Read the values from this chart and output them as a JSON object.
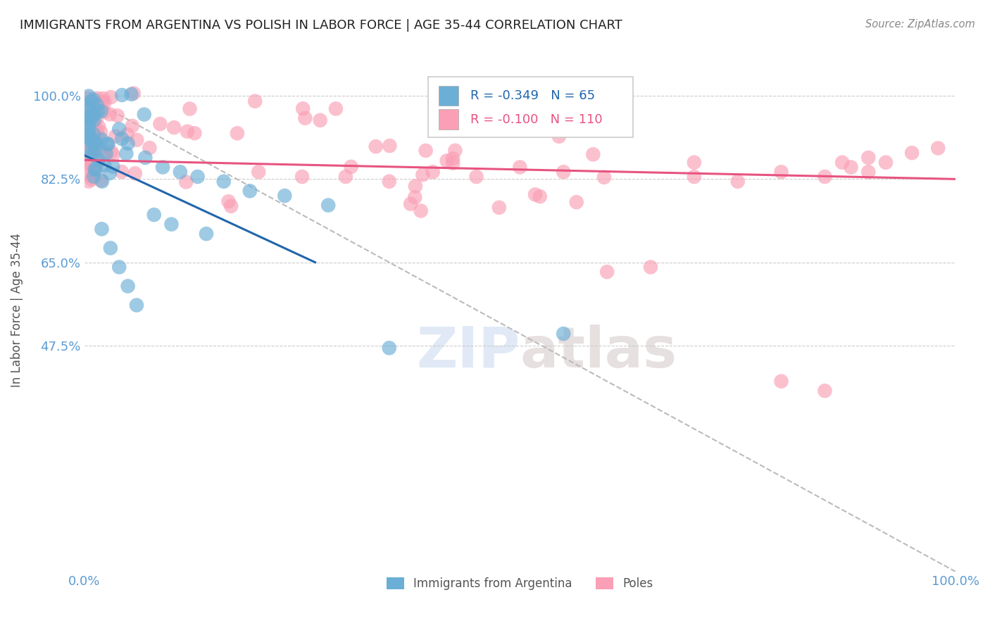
{
  "title": "IMMIGRANTS FROM ARGENTINA VS POLISH IN LABOR FORCE | AGE 35-44 CORRELATION CHART",
  "source": "Source: ZipAtlas.com",
  "ylabel": "In Labor Force | Age 35-44",
  "xlim": [
    0.0,
    1.0
  ],
  "ylim": [
    0.0,
    1.1
  ],
  "yticks": [
    0.475,
    0.65,
    0.825,
    1.0
  ],
  "ytick_labels": [
    "47.5%",
    "65.0%",
    "82.5%",
    "100.0%"
  ],
  "xtick_labels": [
    "0.0%",
    "100.0%"
  ],
  "xticks": [
    0.0,
    1.0
  ],
  "legend_r_argentina": "-0.349",
  "legend_n_argentina": "65",
  "legend_r_poles": "-0.100",
  "legend_n_poles": "110",
  "argentina_color": "#6baed6",
  "poles_color": "#fa9fb5",
  "argentina_line_color": "#2166ac",
  "poles_line_color": "#e75480",
  "dashed_line_color": "#bbbbbb",
  "background_color": "#ffffff",
  "title_fontsize": 13,
  "axis_label_color": "#5b9bd5",
  "arg_line_x": [
    0.0,
    0.265
  ],
  "arg_line_y": [
    0.875,
    0.65
  ],
  "pol_line_x": [
    0.0,
    1.0
  ],
  "pol_line_y": [
    0.865,
    0.825
  ],
  "dash_line_x": [
    0.0,
    1.0
  ],
  "dash_line_y": [
    1.0,
    0.0
  ]
}
